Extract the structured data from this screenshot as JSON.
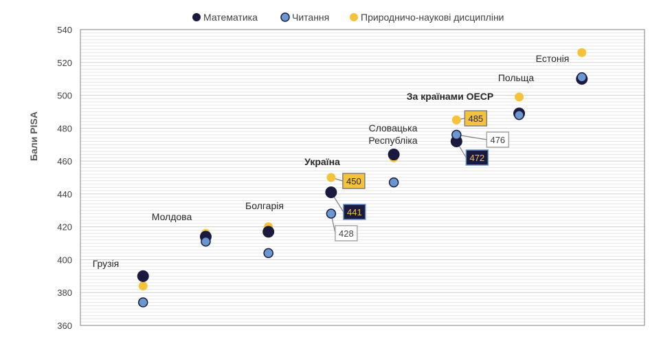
{
  "chart_data": {
    "type": "scatter",
    "title": "",
    "ylabel": "Бали PISA",
    "xlabel": "",
    "ylim": [
      360,
      540
    ],
    "yticks": [
      360,
      380,
      400,
      420,
      440,
      460,
      480,
      500,
      520,
      540
    ],
    "grid": true,
    "legend_position": "top",
    "categories": [
      "Грузія",
      "Молдова",
      "Болгарія",
      "Україна",
      "Словацька Республіка",
      "За країнами ОЕСР",
      "Польща",
      "Естонія"
    ],
    "bold_categories": [
      "Україна",
      "За країнами ОЕСР"
    ],
    "series": [
      {
        "name": "Математика",
        "color": "#1a1a3e",
        "values": [
          390,
          414,
          417,
          441,
          464,
          472,
          489,
          510
        ]
      },
      {
        "name": "Читання",
        "color": "#6a97cf",
        "values": [
          374,
          411,
          404,
          428,
          447,
          476,
          488,
          511
        ]
      },
      {
        "name": "Природничо-наукові дисципліни",
        "color": "#f5c23c",
        "values": [
          384,
          416,
          420,
          450,
          462,
          485,
          499,
          526
        ]
      }
    ],
    "callouts": [
      {
        "text": "450",
        "style": "gold"
      },
      {
        "text": "441",
        "style": "navy"
      },
      {
        "text": "428",
        "style": "white"
      },
      {
        "text": "485",
        "style": "gold"
      },
      {
        "text": "476",
        "style": "white"
      },
      {
        "text": "472",
        "style": "navy"
      }
    ]
  }
}
